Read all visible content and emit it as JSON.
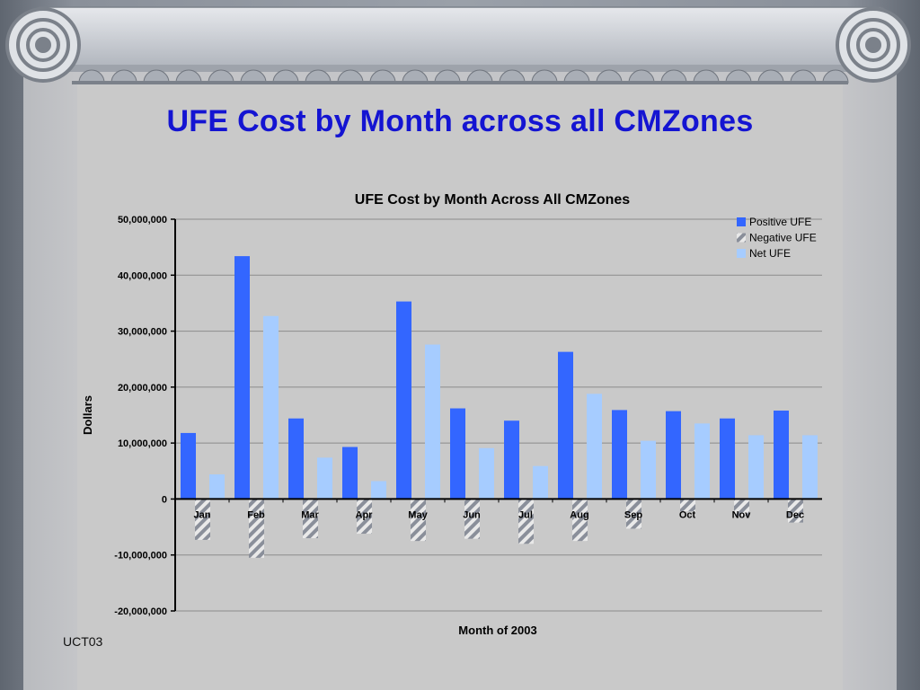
{
  "slide": {
    "title": "UFE Cost by Month across all CMZones",
    "footer": "UCT03"
  },
  "colors": {
    "positive": "#3366ff",
    "negative_stripe": "#8a8f9a",
    "net": "#a6ccff",
    "title": "#1414d2"
  },
  "chart_data": {
    "type": "bar",
    "title": "UFE Cost by Month Across All CMZones",
    "xlabel": "Month of 2003",
    "ylabel": "Dollars",
    "ylim": [
      -20000000,
      50000000
    ],
    "yticks": [
      {
        "value": 50000000,
        "label": "50,000,000"
      },
      {
        "value": 40000000,
        "label": "40,000,000"
      },
      {
        "value": 30000000,
        "label": "30,000,000"
      },
      {
        "value": 20000000,
        "label": "20,000,000"
      },
      {
        "value": 10000000,
        "label": "10,000,000"
      },
      {
        "value": 0,
        "label": "0"
      },
      {
        "value": -10000000,
        "label": "-10,000,000"
      },
      {
        "value": -20000000,
        "label": "-20,000,000"
      }
    ],
    "grid": true,
    "legend_position": "top-right",
    "categories": [
      "Jan",
      "Feb",
      "Mar",
      "Apr",
      "May",
      "Jun",
      "Jul",
      "Aug",
      "Sep",
      "Oct",
      "Nov",
      "Dec"
    ],
    "series": [
      {
        "name": "Positive UFE",
        "key": "positive",
        "values": [
          11800000,
          43400000,
          14400000,
          9300000,
          35300000,
          16200000,
          14000000,
          26300000,
          15900000,
          15700000,
          14400000,
          15800000
        ]
      },
      {
        "name": "Negative UFE",
        "key": "negative",
        "values": [
          -7300000,
          -10500000,
          -7000000,
          -6200000,
          -7500000,
          -7100000,
          -8000000,
          -7500000,
          -5300000,
          -2200000,
          -3000000,
          -4200000
        ]
      },
      {
        "name": "Net UFE",
        "key": "net",
        "values": [
          4400000,
          32700000,
          7400000,
          3200000,
          27600000,
          9100000,
          5900000,
          18800000,
          10400000,
          13500000,
          11400000,
          11400000
        ]
      }
    ]
  }
}
